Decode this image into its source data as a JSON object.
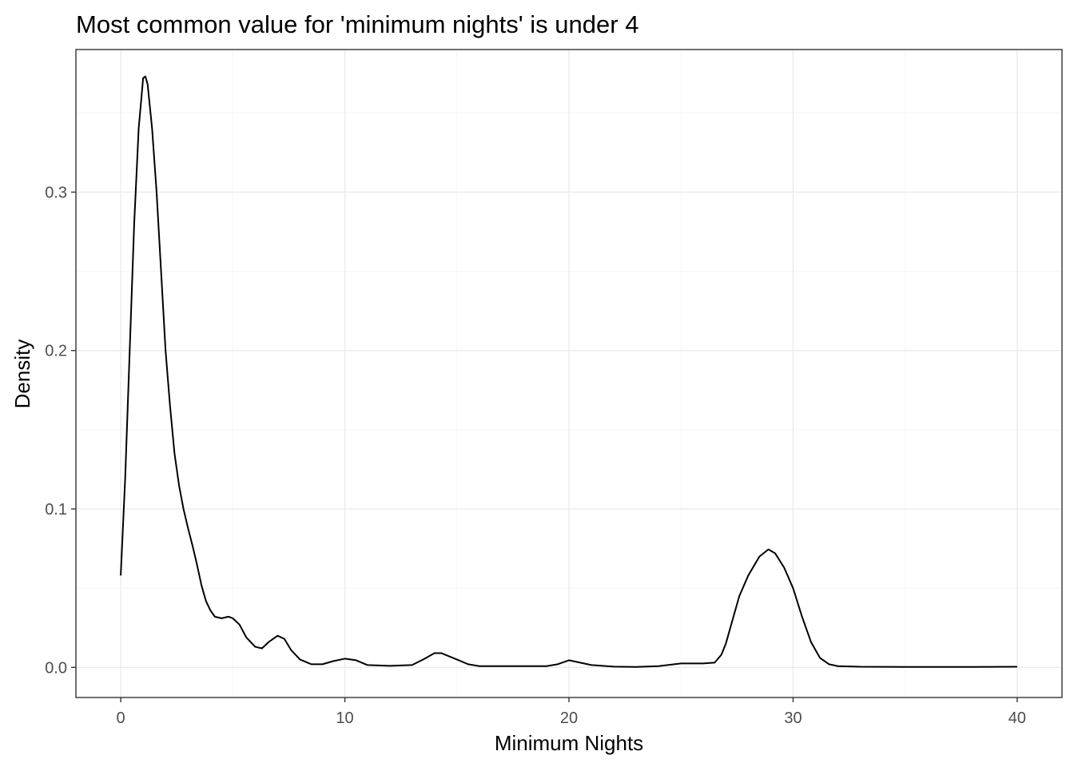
{
  "chart_data": {
    "type": "line",
    "title": "Most common value for 'minimum nights' is under 4",
    "xlabel": "Minimum Nights",
    "ylabel": "Density",
    "xlim": [
      -2,
      42
    ],
    "ylim": [
      -0.019,
      0.39
    ],
    "x_ticks": [
      0,
      10,
      20,
      30,
      40
    ],
    "x_tick_labels": [
      "0",
      "10",
      "20",
      "30",
      "40"
    ],
    "y_ticks": [
      0.0,
      0.1,
      0.2,
      0.3
    ],
    "y_tick_labels": [
      "0.0",
      "0.1",
      "0.2",
      "0.3"
    ],
    "x_minor_ticks": [
      5,
      15,
      25,
      35
    ],
    "y_minor_ticks": [
      0.05,
      0.15,
      0.25,
      0.35
    ],
    "grid": true,
    "legend": "none",
    "series": [
      {
        "values": [
          [
            0.0,
            0.058
          ],
          [
            0.2,
            0.12
          ],
          [
            0.4,
            0.2
          ],
          [
            0.6,
            0.28
          ],
          [
            0.8,
            0.34
          ],
          [
            1.0,
            0.372
          ],
          [
            1.1,
            0.373
          ],
          [
            1.2,
            0.368
          ],
          [
            1.4,
            0.34
          ],
          [
            1.6,
            0.3
          ],
          [
            1.8,
            0.25
          ],
          [
            2.0,
            0.2
          ],
          [
            2.2,
            0.165
          ],
          [
            2.4,
            0.135
          ],
          [
            2.6,
            0.115
          ],
          [
            2.8,
            0.1
          ],
          [
            3.0,
            0.088
          ],
          [
            3.2,
            0.077
          ],
          [
            3.4,
            0.065
          ],
          [
            3.6,
            0.052
          ],
          [
            3.8,
            0.042
          ],
          [
            4.0,
            0.036
          ],
          [
            4.2,
            0.032
          ],
          [
            4.5,
            0.031
          ],
          [
            4.8,
            0.032
          ],
          [
            5.0,
            0.031
          ],
          [
            5.3,
            0.027
          ],
          [
            5.6,
            0.019
          ],
          [
            6.0,
            0.013
          ],
          [
            6.3,
            0.012
          ],
          [
            6.6,
            0.016
          ],
          [
            7.0,
            0.02
          ],
          [
            7.3,
            0.018
          ],
          [
            7.6,
            0.011
          ],
          [
            8.0,
            0.005
          ],
          [
            8.5,
            0.002
          ],
          [
            9.0,
            0.002
          ],
          [
            9.5,
            0.004
          ],
          [
            10.0,
            0.0055
          ],
          [
            10.5,
            0.0045
          ],
          [
            11.0,
            0.0015
          ],
          [
            12.0,
            0.001
          ],
          [
            13.0,
            0.0015
          ],
          [
            13.5,
            0.005
          ],
          [
            14.0,
            0.009
          ],
          [
            14.3,
            0.009
          ],
          [
            15.0,
            0.005
          ],
          [
            15.5,
            0.002
          ],
          [
            16.0,
            0.0008
          ],
          [
            17.0,
            0.0008
          ],
          [
            19.0,
            0.0008
          ],
          [
            19.5,
            0.002
          ],
          [
            20.0,
            0.0045
          ],
          [
            20.5,
            0.003
          ],
          [
            21.0,
            0.0015
          ],
          [
            22.0,
            0.0005
          ],
          [
            23.0,
            0.0003
          ],
          [
            24.0,
            0.0008
          ],
          [
            25.0,
            0.0025
          ],
          [
            26.0,
            0.0025
          ],
          [
            26.5,
            0.003
          ],
          [
            26.8,
            0.008
          ],
          [
            27.0,
            0.015
          ],
          [
            27.3,
            0.03
          ],
          [
            27.6,
            0.045
          ],
          [
            28.0,
            0.058
          ],
          [
            28.5,
            0.07
          ],
          [
            28.9,
            0.0745
          ],
          [
            29.2,
            0.072
          ],
          [
            29.6,
            0.063
          ],
          [
            30.0,
            0.05
          ],
          [
            30.4,
            0.032
          ],
          [
            30.8,
            0.016
          ],
          [
            31.2,
            0.006
          ],
          [
            31.6,
            0.002
          ],
          [
            32.0,
            0.0008
          ],
          [
            33.0,
            0.0004
          ],
          [
            35.0,
            0.0003
          ],
          [
            38.0,
            0.0003
          ],
          [
            40.0,
            0.0004
          ]
        ]
      }
    ]
  }
}
